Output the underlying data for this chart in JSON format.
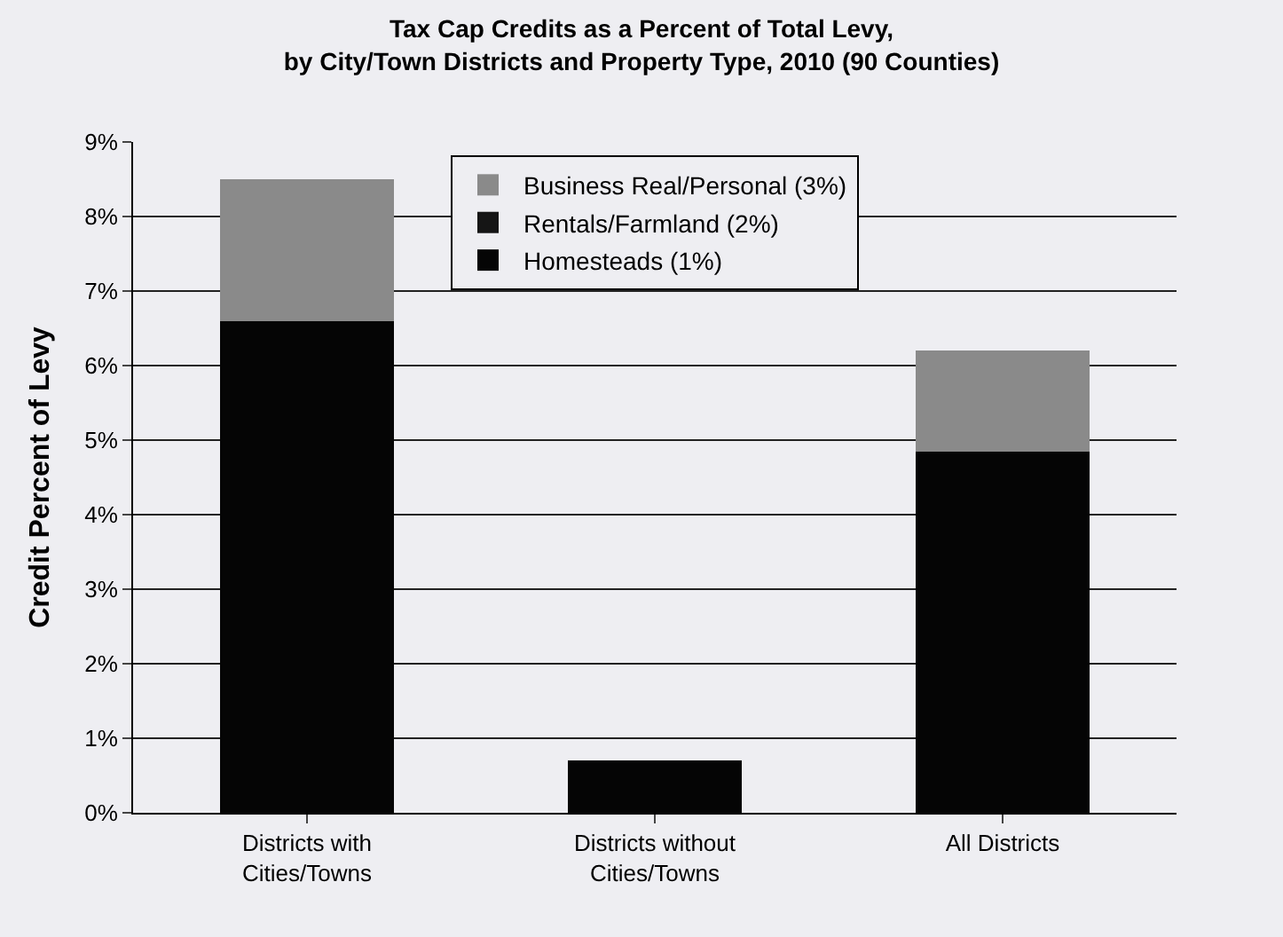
{
  "chart_data": {
    "type": "bar",
    "stacked": true,
    "title": "Tax Cap Credits as a Percent of Total Levy,\nby City/Town Districts and Property Type, 2010 (90 Counties)",
    "ylabel": "Credit Percent of Levy",
    "categories": [
      "Districts with\nCities/Towns",
      "Districts without\nCities/Towns",
      "All Districts"
    ],
    "series": [
      {
        "name": "Homesteads (1%)",
        "color": "#050505",
        "values": [
          6.6,
          0.7,
          4.85
        ]
      },
      {
        "name": "Rentals/Farmland (2%)",
        "color": "#151515",
        "values": [
          null,
          null,
          null
        ]
      },
      {
        "name": "Business Real/Personal (3%)",
        "color": "#8a8a8a",
        "values": [
          1.9,
          null,
          1.35
        ]
      }
    ],
    "ylim": [
      0,
      9
    ],
    "yticks": [
      {
        "value": 0,
        "label": "0%"
      },
      {
        "value": 1,
        "label": "1%"
      },
      {
        "value": 2,
        "label": "2%"
      },
      {
        "value": 3,
        "label": "3%"
      },
      {
        "value": 4,
        "label": "4%"
      },
      {
        "value": 5,
        "label": "5%"
      },
      {
        "value": 6,
        "label": "6%"
      },
      {
        "value": 7,
        "label": "7%"
      },
      {
        "value": 8,
        "label": "8%"
      },
      {
        "value": 9,
        "label": "9%"
      }
    ],
    "grid": "y",
    "legend": "top"
  }
}
